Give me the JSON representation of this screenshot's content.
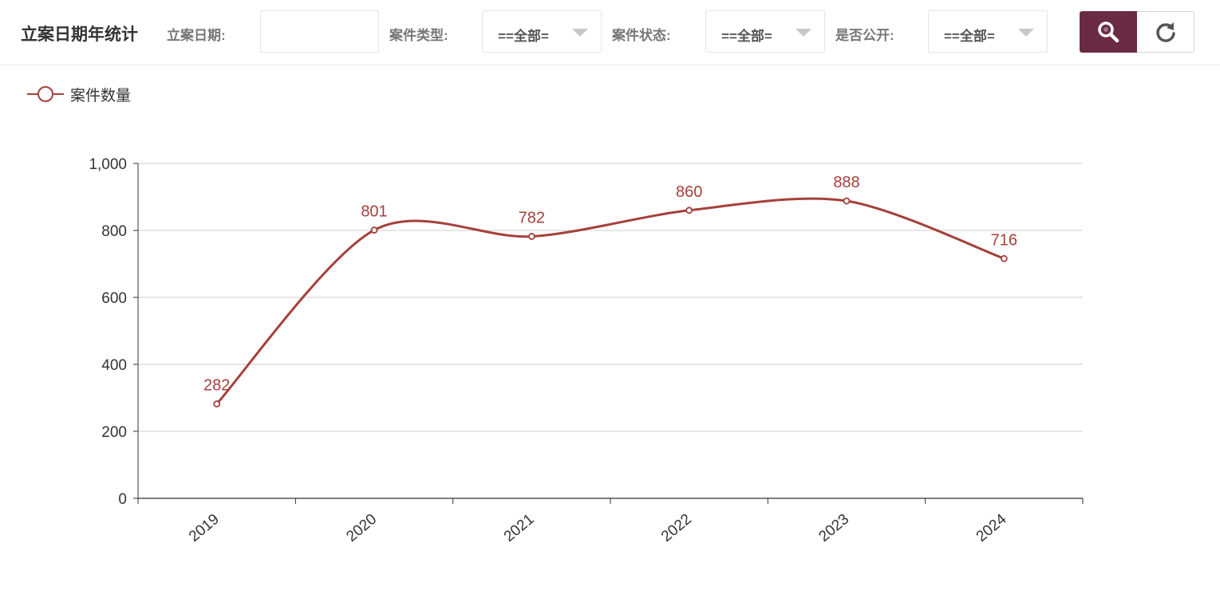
{
  "toolbar": {
    "title": "立案日期年统计",
    "date_label": "立案日期:",
    "date_value": "",
    "type_label": "案件类型:",
    "type_value": "==全部=",
    "status_label": "案件状态:",
    "status_value": "==全部=",
    "public_label": "是否公开:",
    "public_value": "==全部=",
    "search_icon": "search-icon",
    "refresh_icon": "refresh-icon"
  },
  "colors": {
    "accent": "#6b2a44",
    "series": "#a5403a",
    "axis": "#333333",
    "grid": "#cccccc"
  },
  "chart_data": {
    "type": "line",
    "smooth": true,
    "categories": [
      "2019",
      "2020",
      "2021",
      "2022",
      "2023",
      "2024"
    ],
    "series": [
      {
        "name": "案件数量",
        "values": [
          282,
          801,
          782,
          860,
          888,
          716
        ]
      }
    ],
    "ylim": [
      0,
      1000
    ],
    "yticks": [
      0,
      200,
      400,
      600,
      800,
      1000
    ],
    "ytick_labels": [
      "0",
      "200",
      "400",
      "600",
      "800",
      "1,000"
    ],
    "grid": true,
    "legend": "top-left",
    "show_data_labels": true
  }
}
